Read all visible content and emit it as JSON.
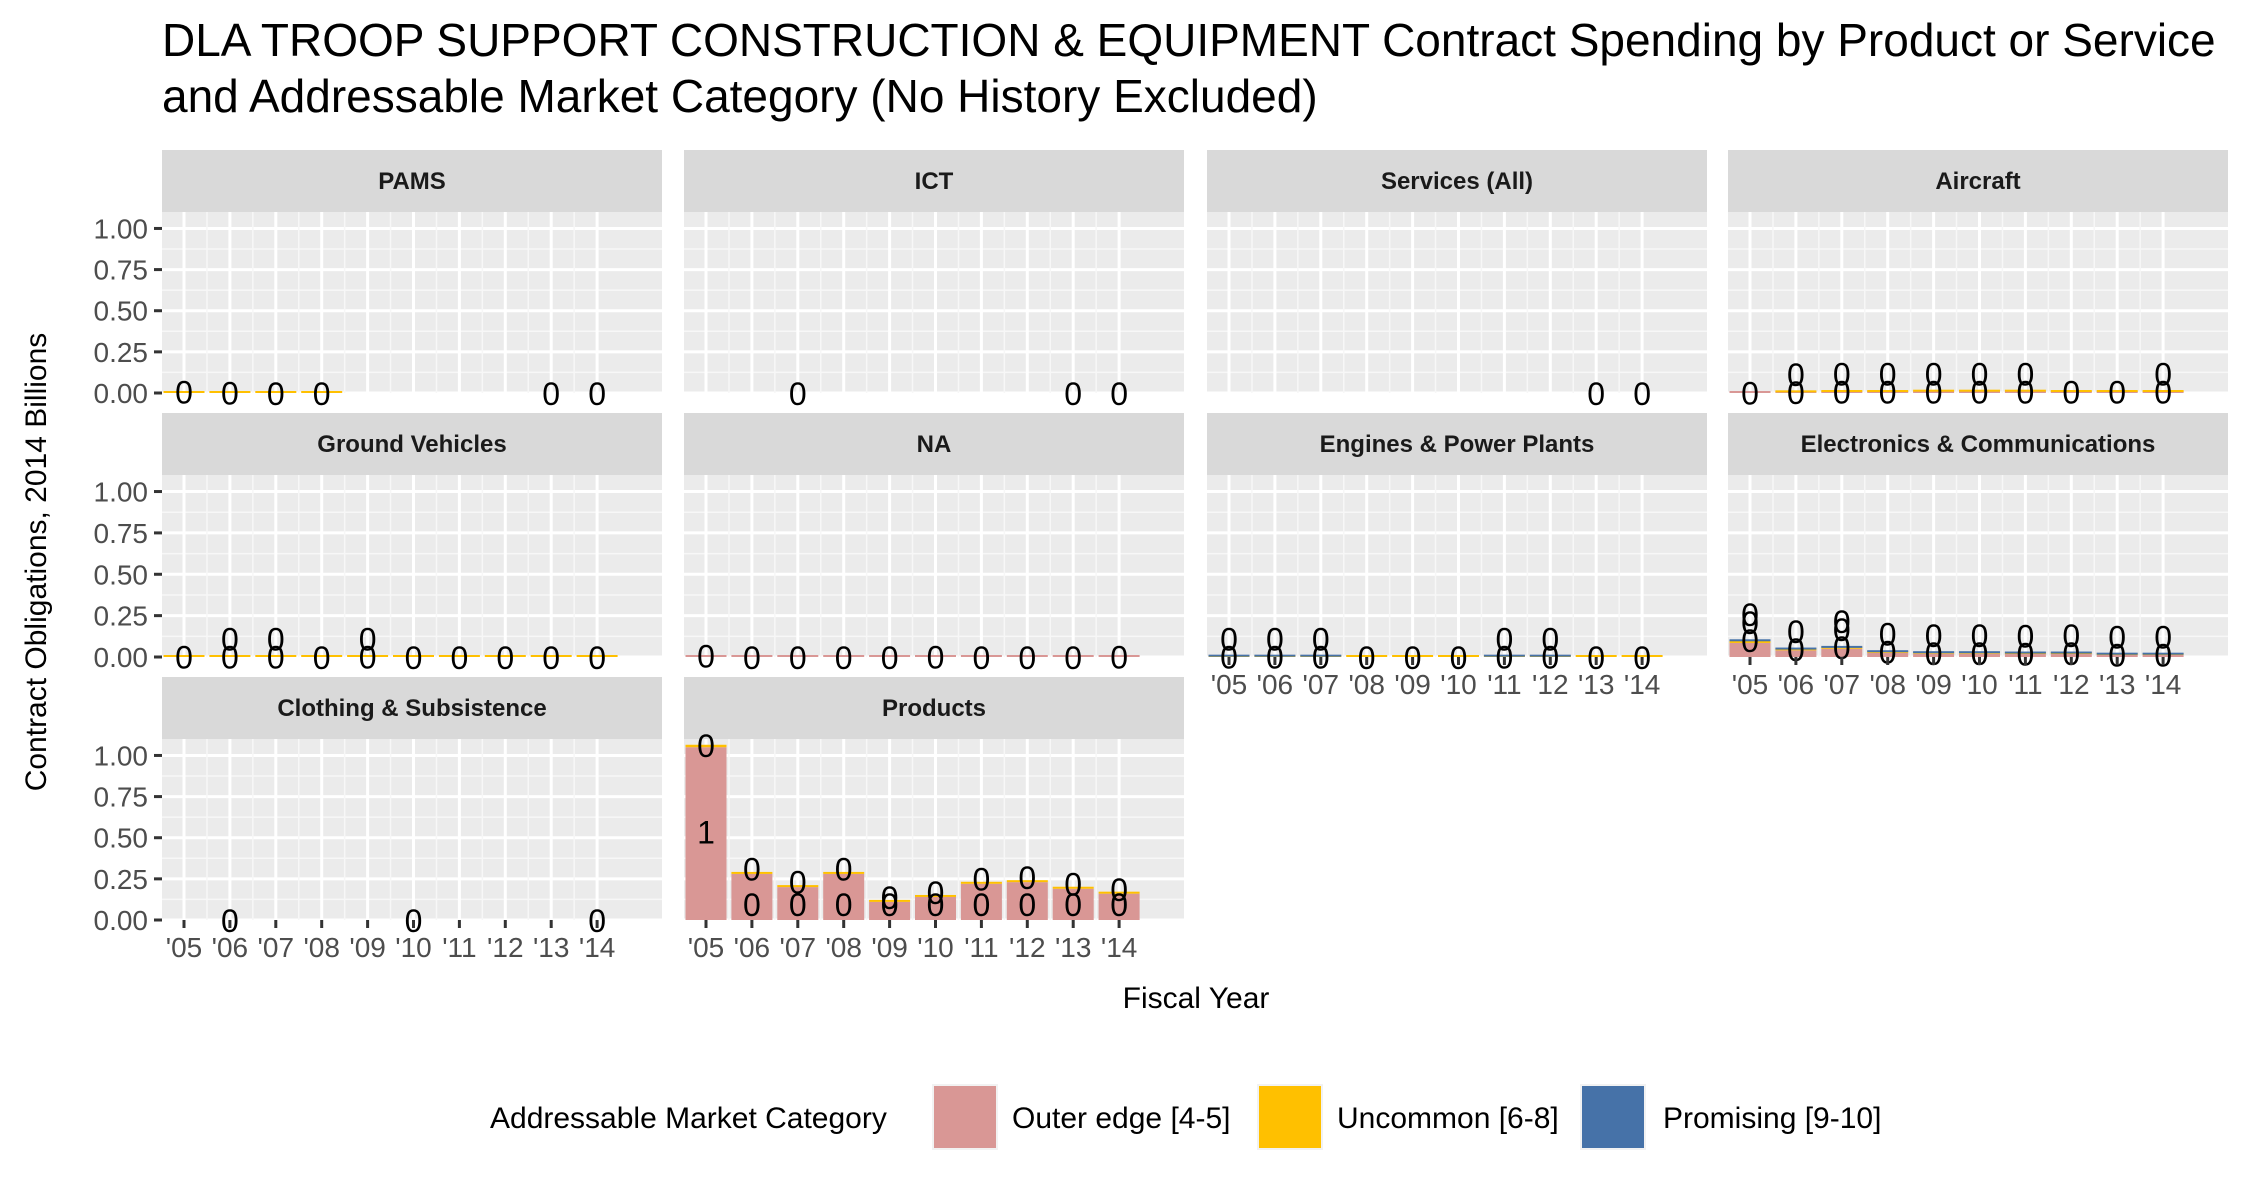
{
  "title_line1": "DLA TROOP SUPPORT CONSTRUCTION & EQUIPMENT Contract Spending by Product or Service",
  "title_line2": "and Addressable Market Category (No History Excluded)",
  "chart_data": {
    "type": "bar",
    "stacked": true,
    "faceted": true,
    "xlabel": "Fiscal Year",
    "ylabel": "Contract Obligations, 2014 Billions",
    "ylim": [
      0,
      1.1
    ],
    "yticks": [
      "0.00",
      "0.25",
      "0.50",
      "0.75",
      "1.00"
    ],
    "categories": [
      "'05",
      "'06",
      "'07",
      "'08",
      "'09",
      "'10",
      "'11",
      "'12",
      "'13",
      "'14"
    ],
    "legend": {
      "title": "Addressable Market Category",
      "placement": "bottom",
      "items": [
        {
          "label": "Outer edge [4-5]",
          "color": "#D99795"
        },
        {
          "label": "Uncommon [6-8]",
          "color": "#FFC000"
        },
        {
          "label": "Promising [9-10]",
          "color": "#4672A8"
        }
      ]
    },
    "panels": [
      {
        "name": "PAMS",
        "series": [
          {
            "name": "Outer edge [4-5]",
            "values": [
              0,
              0,
              0,
              0,
              null,
              null,
              null,
              null,
              0,
              0
            ]
          },
          {
            "name": "Uncommon [6-8]",
            "values": [
              0.008,
              0.002,
              0.001,
              0.001,
              null,
              null,
              null,
              null,
              0,
              0
            ]
          },
          {
            "name": "Promising [9-10]",
            "values": [
              null,
              null,
              null,
              null,
              null,
              null,
              null,
              null,
              null,
              null
            ]
          }
        ],
        "labels": [
          [
            0
          ],
          [
            0
          ],
          [
            0
          ],
          [
            0
          ],
          [],
          [],
          [],
          [],
          [
            0
          ],
          [
            0
          ]
        ]
      },
      {
        "name": "ICT",
        "series": [
          {
            "name": "Outer edge [4-5]",
            "values": [
              null,
              null,
              0,
              null,
              null,
              null,
              null,
              null,
              0,
              0
            ]
          },
          {
            "name": "Uncommon [6-8]",
            "values": [
              null,
              null,
              null,
              null,
              null,
              null,
              null,
              null,
              null,
              null
            ]
          },
          {
            "name": "Promising [9-10]",
            "values": [
              null,
              null,
              null,
              null,
              null,
              null,
              null,
              null,
              null,
              null
            ]
          }
        ],
        "labels": [
          [],
          [],
          [
            0
          ],
          [],
          [],
          [],
          [],
          [],
          [
            0
          ],
          [
            0
          ]
        ]
      },
      {
        "name": "Services (All)",
        "series": [
          {
            "name": "Outer edge [4-5]",
            "values": [
              null,
              null,
              null,
              null,
              null,
              null,
              null,
              null,
              0,
              0
            ]
          },
          {
            "name": "Uncommon [6-8]",
            "values": [
              null,
              null,
              null,
              null,
              null,
              null,
              null,
              null,
              null,
              null
            ]
          },
          {
            "name": "Promising [9-10]",
            "values": [
              null,
              null,
              null,
              null,
              null,
              null,
              null,
              null,
              null,
              null
            ]
          }
        ],
        "labels": [
          [],
          [],
          [],
          [],
          [],
          [],
          [],
          [],
          [
            0
          ],
          [
            0
          ]
        ]
      },
      {
        "name": "Aircraft",
        "series": [
          {
            "name": "Outer edge [4-5]",
            "values": [
              0.002,
              0.004,
              0.006,
              0.006,
              0.008,
              0.008,
              0.008,
              0.006,
              0.006,
              0.006
            ]
          },
          {
            "name": "Uncommon [6-8]",
            "values": [
              0,
              0.001,
              0.002,
              0.002,
              0.002,
              0.002,
              0.002,
              0.002,
              0.002,
              0.002
            ]
          },
          {
            "name": "Promising [9-10]",
            "values": [
              null,
              null,
              null,
              null,
              null,
              null,
              null,
              null,
              null,
              null
            ]
          }
        ],
        "labels": [
          [
            0
          ],
          [
            0,
            0
          ],
          [
            0,
            0
          ],
          [
            0,
            0
          ],
          [
            0,
            0
          ],
          [
            0,
            0
          ],
          [
            0,
            0
          ],
          [
            0
          ],
          [
            0
          ],
          [
            0,
            0
          ]
        ]
      },
      {
        "name": "Ground Vehicles",
        "series": [
          {
            "name": "Outer edge [4-5]",
            "values": [
              0,
              0,
              0,
              0,
              0,
              0,
              0,
              0,
              0,
              0
            ]
          },
          {
            "name": "Uncommon [6-8]",
            "values": [
              0.002,
              0.003,
              0.003,
              0.001,
              0.004,
              0.001,
              0.001,
              0.001,
              0.001,
              0.001
            ]
          },
          {
            "name": "Promising [9-10]",
            "values": [
              null,
              null,
              null,
              null,
              null,
              null,
              null,
              null,
              null,
              null
            ]
          }
        ],
        "labels": [
          [
            0
          ],
          [
            0,
            0
          ],
          [
            0,
            0
          ],
          [
            0
          ],
          [
            0,
            0
          ],
          [
            0
          ],
          [
            0
          ],
          [
            0
          ],
          [
            0
          ],
          [
            0
          ]
        ]
      },
      {
        "name": "NA",
        "series": [
          {
            "name": "Outer edge [4-5]",
            "values": [
              0.009,
              0.001,
              0.001,
              0.001,
              0.001,
              0.002,
              0.001,
              0.001,
              0.001,
              0.003
            ]
          },
          {
            "name": "Uncommon [6-8]",
            "values": [
              null,
              null,
              null,
              null,
              null,
              null,
              null,
              null,
              null,
              null
            ]
          },
          {
            "name": "Promising [9-10]",
            "values": [
              null,
              null,
              null,
              null,
              null,
              null,
              null,
              null,
              null,
              null
            ]
          }
        ],
        "labels": [
          [
            0
          ],
          [
            0
          ],
          [
            0
          ],
          [
            0
          ],
          [
            0
          ],
          [
            0
          ],
          [
            0
          ],
          [
            0
          ],
          [
            0
          ],
          [
            0
          ]
        ]
      },
      {
        "name": "Engines & Power Plants",
        "series": [
          {
            "name": "Outer edge [4-5]",
            "values": [
              0,
              0,
              0,
              0,
              0,
              0,
              0,
              0,
              0,
              0
            ]
          },
          {
            "name": "Uncommon [6-8]",
            "values": [
              0.002,
              0.002,
              0.002,
              0.001,
              0.001,
              0.001,
              0.002,
              0.002,
              0.001,
              0.001
            ]
          },
          {
            "name": "Promising [9-10]",
            "values": [
              0.002,
              0.001,
              0.002,
              0,
              0,
              0,
              0.001,
              0.001,
              0,
              0
            ]
          }
        ],
        "labels": [
          [
            0,
            0
          ],
          [
            0,
            0
          ],
          [
            0,
            0
          ],
          [
            0
          ],
          [
            0
          ],
          [
            0
          ],
          [
            0,
            0
          ],
          [
            0,
            0
          ],
          [
            0
          ],
          [
            0
          ]
        ]
      },
      {
        "name": "Electronics & Communications",
        "series": [
          {
            "name": "Outer edge [4-5]",
            "values": [
              0.085,
              0.04,
              0.05,
              0.025,
              0.02,
              0.02,
              0.018,
              0.018,
              0.012,
              0.012
            ]
          },
          {
            "name": "Uncommon [6-8]",
            "values": [
              0.01,
              0.005,
              0.005,
              0.004,
              0.003,
              0.003,
              0.003,
              0.003,
              0.002,
              0.002
            ]
          },
          {
            "name": "Promising [9-10]",
            "values": [
              0.008,
              0.004,
              0.005,
              0.003,
              0.002,
              0.002,
              0.001,
              0.002,
              0.001,
              0.001
            ]
          }
        ],
        "labels": [
          [
            0,
            0,
            0
          ],
          [
            0,
            0
          ],
          [
            0,
            0,
            0
          ],
          [
            0,
            0
          ],
          [
            0,
            0
          ],
          [
            0,
            0
          ],
          [
            0,
            0
          ],
          [
            0,
            0
          ],
          [
            0,
            0
          ],
          [
            0,
            0
          ]
        ]
      },
      {
        "name": "Clothing & Subsistence",
        "series": [
          {
            "name": "Outer edge [4-5]",
            "values": [
              null,
              0,
              null,
              null,
              null,
              0,
              null,
              null,
              null,
              0
            ]
          },
          {
            "name": "Uncommon [6-8]",
            "values": [
              null,
              null,
              null,
              null,
              null,
              null,
              null,
              null,
              null,
              null
            ]
          },
          {
            "name": "Promising [9-10]",
            "values": [
              null,
              null,
              null,
              null,
              null,
              null,
              null,
              null,
              null,
              null
            ]
          }
        ],
        "labels": [
          [],
          [
            0
          ],
          [],
          [],
          [],
          [
            0
          ],
          [],
          [],
          [],
          [
            0
          ]
        ]
      },
      {
        "name": "Products",
        "series": [
          {
            "name": "Outer edge [4-5]",
            "values": [
              1.05,
              0.28,
              0.2,
              0.28,
              0.11,
              0.14,
              0.22,
              0.23,
              0.19,
              0.16
            ]
          },
          {
            "name": "Uncommon [6-8]",
            "values": [
              0.015,
              0.01,
              0.01,
              0.01,
              0.005,
              0.005,
              0.007,
              0.008,
              0.006,
              0.005
            ]
          },
          {
            "name": "Promising [9-10]",
            "values": [
              null,
              null,
              null,
              null,
              null,
              null,
              null,
              null,
              null,
              null
            ]
          }
        ],
        "labels": [
          [
            0,
            1
          ],
          [
            0,
            0
          ],
          [
            0,
            0
          ],
          [
            0,
            0
          ],
          [
            0,
            0
          ],
          [
            0,
            0
          ],
          [
            0,
            0
          ],
          [
            0,
            0
          ],
          [
            0,
            0
          ],
          [
            0,
            0
          ]
        ]
      }
    ]
  }
}
